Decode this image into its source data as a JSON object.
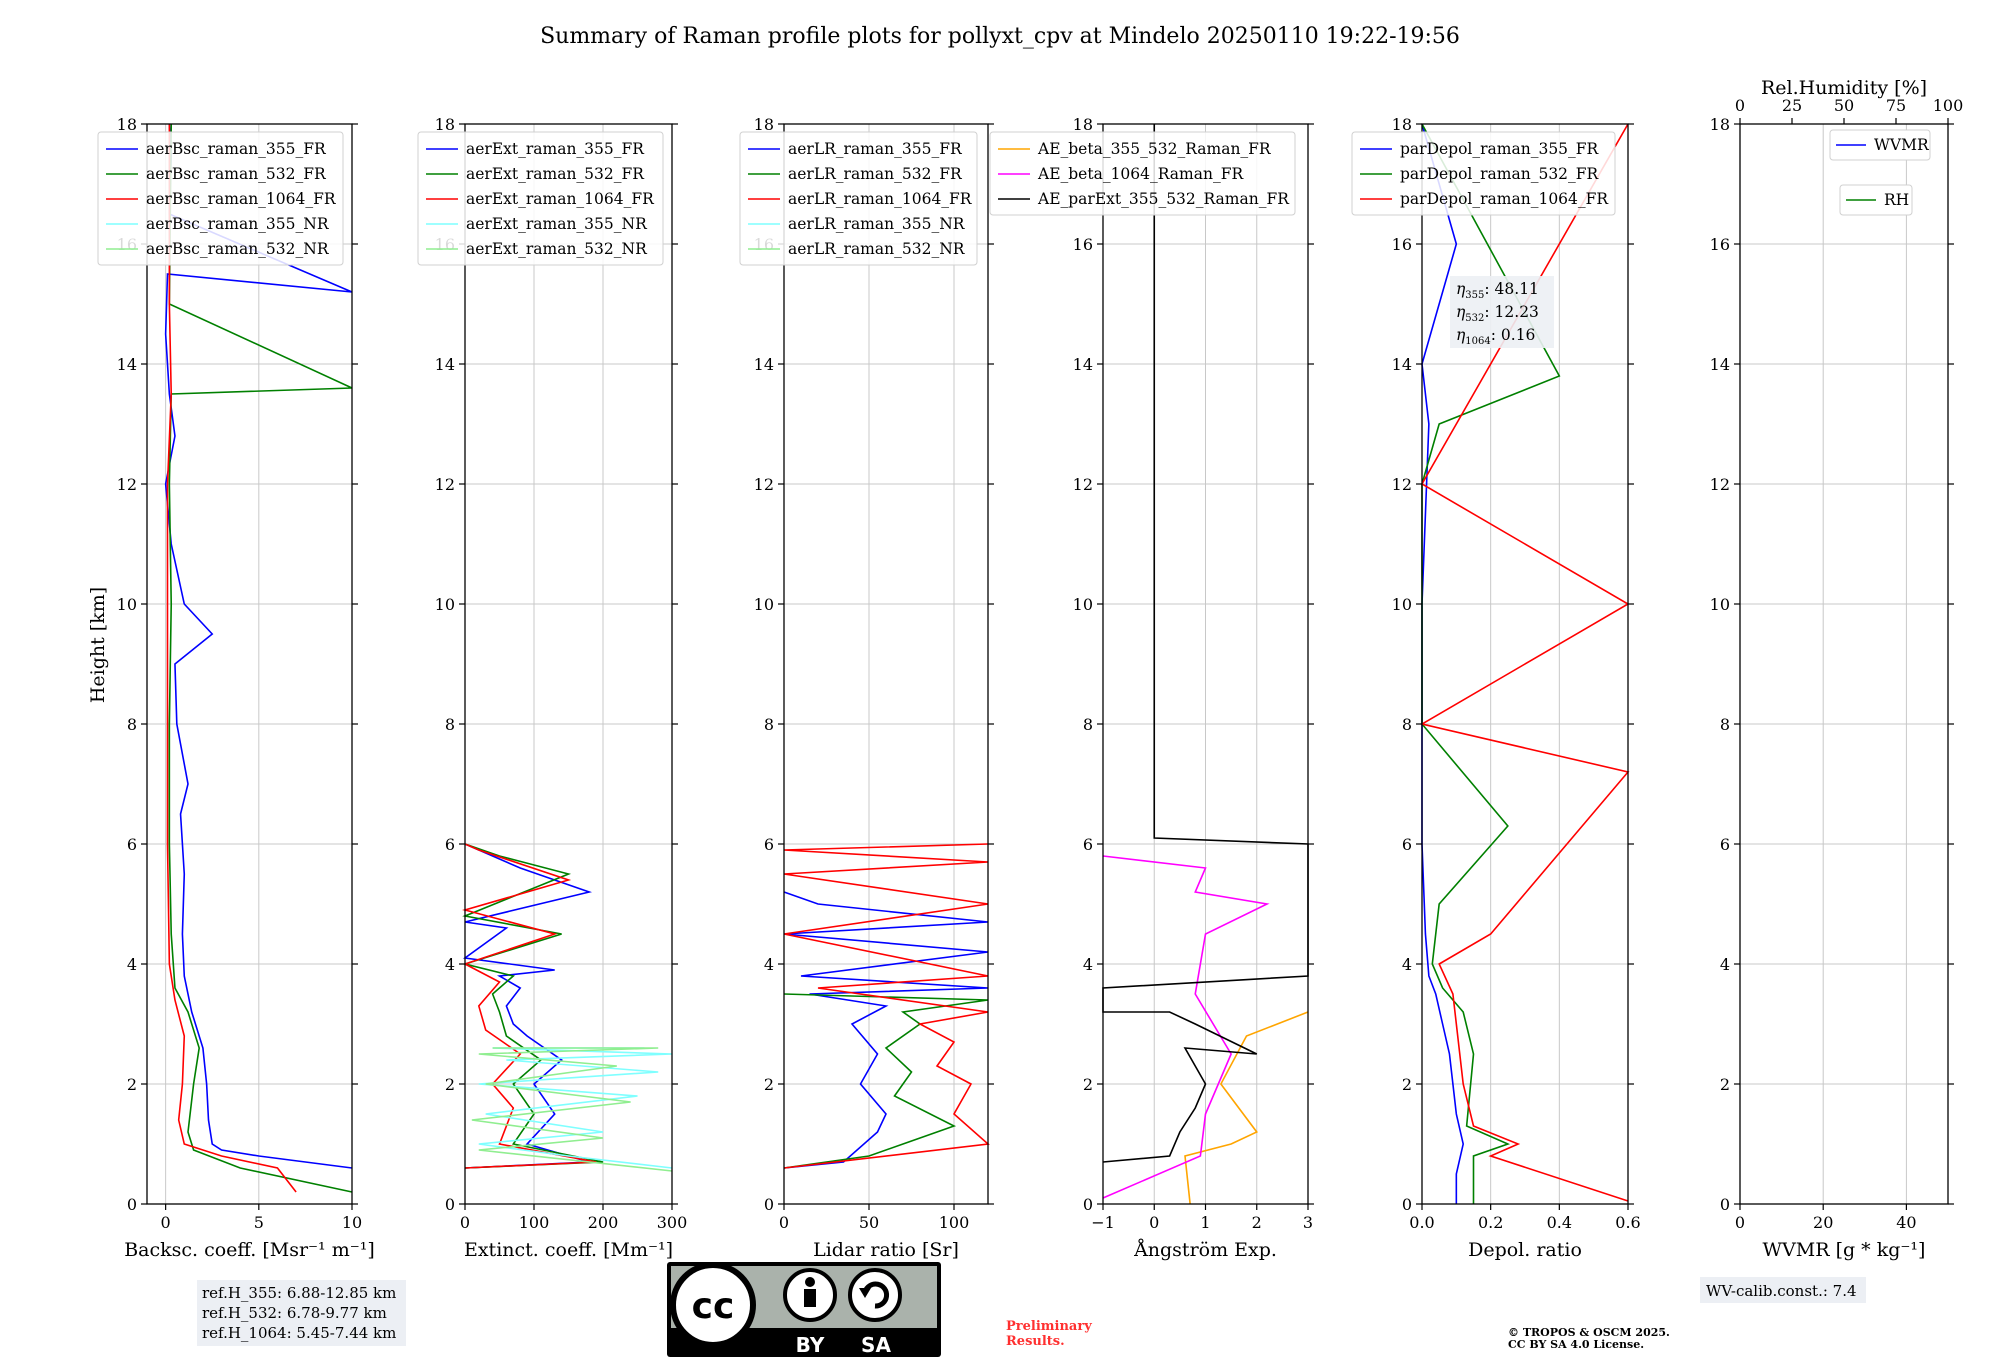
{
  "title": "Summary of Raman profile plots for pollyxt_cpv at Mindelo 20250110 19:22-19:56",
  "y_axis_label": "Height [km]",
  "colors": {
    "blue": "#0000ff",
    "green": "#008000",
    "red": "#ff0000",
    "cyan": "#7fffff",
    "lightgreen": "#90ee90",
    "orange": "#ffa500",
    "magenta": "#ff00ff",
    "black": "#000000",
    "grid": "#c8c8c8"
  },
  "chart_data": [
    {
      "id": "backscatter",
      "type": "line",
      "xlabel": "Backsc. coeff. [Msr⁻¹ m⁻¹]",
      "xlim": [
        -1,
        10
      ],
      "ylim": [
        0,
        18
      ],
      "xticks": [
        0,
        5,
        10
      ],
      "yticks": [
        0,
        2,
        4,
        6,
        8,
        10,
        12,
        14,
        16,
        18
      ],
      "legend": [
        "aerBsc_raman_355_FR",
        "aerBsc_raman_532_FR",
        "aerBsc_raman_1064_FR",
        "aerBsc_raman_355_NR",
        "aerBsc_raman_532_NR"
      ],
      "series": [
        {
          "name": "aerBsc_raman_355_FR",
          "color": "blue",
          "x": [
            10,
            5,
            3,
            2.5,
            2.3,
            2.2,
            2.0,
            1.4,
            1.0,
            0.9,
            1.0,
            0.8,
            1.2,
            0.6,
            0.5,
            2.5,
            1.0,
            0.3,
            0.0,
            0.5,
            0.2,
            0.0,
            0.1,
            10,
            0.2,
            0.3,
            0.2
          ],
          "y": [
            0.6,
            0.8,
            0.9,
            1.0,
            1.4,
            2.0,
            2.6,
            3.2,
            3.8,
            4.5,
            5.5,
            6.5,
            7.0,
            8.0,
            9.0,
            9.5,
            10.0,
            11.0,
            12.0,
            12.8,
            13.5,
            14.5,
            15.5,
            15.2,
            16.5,
            17.5,
            18
          ]
        },
        {
          "name": "aerBsc_raman_532_FR",
          "color": "green",
          "x": [
            10,
            4,
            1.5,
            1.2,
            1.5,
            1.8,
            1.2,
            0.5,
            0.3,
            0.2,
            0.2,
            0.3,
            0.2,
            0.3,
            10,
            0.2,
            0.3
          ],
          "y": [
            0.2,
            0.6,
            0.9,
            1.2,
            2.0,
            2.6,
            3.2,
            3.6,
            4.5,
            6.0,
            8.0,
            10.0,
            12.0,
            13.5,
            13.6,
            15.0,
            18
          ]
        },
        {
          "name": "aerBsc_raman_1064_FR",
          "color": "red",
          "x": [
            7,
            6,
            3,
            1,
            0.7,
            0.9,
            1.0,
            0.5,
            0.2,
            0.1,
            0.1,
            0.1,
            0.1,
            0.3,
            0.2,
            0.2
          ],
          "y": [
            0.2,
            0.6,
            0.8,
            1.0,
            1.4,
            2.0,
            2.8,
            3.4,
            4.0,
            6.0,
            8.0,
            10.0,
            12.0,
            13.5,
            15.0,
            18
          ]
        }
      ]
    },
    {
      "id": "extinction",
      "type": "line",
      "xlabel": "Extinct. coeff. [Mm⁻¹]",
      "xlim": [
        0,
        300
      ],
      "ylim": [
        0,
        18
      ],
      "xticks": [
        0,
        100,
        200,
        300
      ],
      "yticks": [
        0,
        2,
        4,
        6,
        8,
        10,
        12,
        14,
        16,
        18
      ],
      "legend": [
        "aerExt_raman_355_FR",
        "aerExt_raman_532_FR",
        "aerExt_raman_1064_FR",
        "aerExt_raman_355_NR",
        "aerExt_raman_532_NR"
      ],
      "series": [
        {
          "name": "aerExt_raman_355_FR",
          "color": "blue",
          "x": [
            0,
            180,
            90,
            130,
            100,
            140,
            90,
            70,
            60,
            80,
            50,
            130,
            0,
            60,
            0,
            180,
            80,
            0
          ],
          "y": [
            0.6,
            0.7,
            1.0,
            1.5,
            2.0,
            2.4,
            2.8,
            3.0,
            3.3,
            3.6,
            3.8,
            3.9,
            4.1,
            4.6,
            4.7,
            5.2,
            5.6,
            6.0
          ]
        },
        {
          "name": "aerExt_raman_532_FR",
          "color": "green",
          "x": [
            0,
            200,
            70,
            100,
            70,
            110,
            60,
            50,
            40,
            70,
            0,
            140,
            0,
            150,
            50,
            0
          ],
          "y": [
            0.6,
            0.7,
            1.0,
            1.5,
            2.0,
            2.4,
            2.8,
            3.2,
            3.5,
            3.8,
            4.0,
            4.5,
            4.8,
            5.5,
            5.8,
            6.0
          ]
        },
        {
          "name": "aerExt_raman_1064_FR",
          "color": "red",
          "x": [
            0,
            190,
            50,
            70,
            40,
            80,
            30,
            20,
            50,
            0,
            130,
            0,
            150,
            20,
            0
          ],
          "y": [
            0.6,
            0.7,
            1.0,
            1.6,
            2.0,
            2.5,
            2.9,
            3.3,
            3.7,
            4.0,
            4.5,
            4.9,
            5.4,
            5.9,
            6.0
          ]
        },
        {
          "name": "aerExt_raman_355_NR",
          "color": "cyan",
          "x": [
            300,
            150,
            20,
            200,
            30,
            250,
            20,
            280,
            60,
            300,
            40,
            260
          ],
          "y": [
            0.6,
            0.8,
            1.0,
            1.2,
            1.5,
            1.8,
            2.0,
            2.2,
            2.4,
            2.5,
            2.6,
            2.6
          ]
        },
        {
          "name": "aerExt_raman_532_NR",
          "color": "lightgreen",
          "x": [
            300,
            20,
            200,
            10,
            240,
            30,
            220,
            20,
            280,
            40
          ],
          "y": [
            0.55,
            0.9,
            1.1,
            1.4,
            1.7,
            2.0,
            2.3,
            2.5,
            2.6,
            2.6
          ]
        }
      ]
    },
    {
      "id": "lidar_ratio",
      "type": "line",
      "xlabel": "Lidar ratio [Sr]",
      "xlim": [
        0,
        120
      ],
      "ylim": [
        0,
        18
      ],
      "xticks": [
        0,
        50,
        100
      ],
      "yticks": [
        0,
        2,
        4,
        6,
        8,
        10,
        12,
        14,
        16,
        18
      ],
      "legend": [
        "aerLR_raman_355_FR",
        "aerLR_raman_532_FR",
        "aerLR_raman_1064_FR",
        "aerLR_raman_355_NR",
        "aerLR_raman_532_NR"
      ],
      "series": [
        {
          "name": "aerLR_raman_355_FR",
          "color": "blue",
          "x": [
            0,
            35,
            55,
            60,
            45,
            55,
            40,
            60,
            15,
            120,
            10,
            120,
            0,
            120,
            20,
            0
          ],
          "y": [
            0.6,
            0.7,
            1.2,
            1.5,
            2.0,
            2.5,
            3.0,
            3.3,
            3.5,
            3.6,
            3.8,
            4.2,
            4.5,
            4.7,
            5.0,
            5.2
          ]
        },
        {
          "name": "aerLR_raman_532_FR",
          "color": "green",
          "x": [
            0,
            50,
            100,
            65,
            75,
            60,
            80,
            70,
            120,
            0
          ],
          "y": [
            0.6,
            0.8,
            1.3,
            1.8,
            2.2,
            2.6,
            3.0,
            3.2,
            3.4,
            3.5
          ]
        },
        {
          "name": "aerLR_raman_1064_FR",
          "color": "red",
          "x": [
            0,
            120,
            100,
            110,
            90,
            100,
            80,
            120,
            20,
            120,
            0,
            120,
            0,
            120,
            0,
            120
          ],
          "y": [
            0.6,
            1.0,
            1.5,
            2.0,
            2.3,
            2.7,
            3.0,
            3.2,
            3.6,
            3.8,
            4.5,
            5.0,
            5.5,
            5.7,
            5.9,
            6.0
          ]
        }
      ]
    },
    {
      "id": "angstrom",
      "type": "line",
      "xlabel": "Ångström Exp.",
      "xlim": [
        -1,
        3
      ],
      "ylim": [
        0,
        18
      ],
      "xticks": [
        -1,
        0,
        1,
        2,
        3
      ],
      "yticks": [
        0,
        2,
        4,
        6,
        8,
        10,
        12,
        14,
        16,
        18
      ],
      "legend": [
        "AE_beta_355_532_Raman_FR",
        "AE_beta_1064_Raman_FR",
        "AE_parExt_355_532_Raman_FR"
      ],
      "series": [
        {
          "name": "AE_beta_355_532_Raman_FR",
          "color": "orange",
          "x": [
            0.7,
            0.6,
            1.5,
            2.0,
            1.3,
            1.8,
            3.0
          ],
          "y": [
            0.0,
            0.8,
            1.0,
            1.2,
            2.0,
            2.8,
            3.2
          ]
        },
        {
          "name": "AE_beta_1064_Raman_FR",
          "color": "magenta",
          "x": [
            -1,
            0.9,
            1.0,
            1.5,
            0.8,
            1.0,
            2.2,
            0.8,
            1.0,
            -1
          ],
          "y": [
            0.1,
            0.8,
            1.5,
            2.5,
            3.5,
            4.5,
            5.0,
            5.2,
            5.6,
            5.8
          ]
        },
        {
          "name": "AE_parExt_355_532_Raman_FR",
          "color": "black",
          "x": [
            -1,
            0.3,
            0.5,
            0.8,
            1.0,
            0.6,
            2.0,
            0.8,
            0.3,
            -1,
            -1,
            3,
            3,
            0,
            0
          ],
          "y": [
            0.7,
            0.8,
            1.2,
            1.6,
            2.0,
            2.6,
            2.5,
            3.0,
            3.2,
            3.2,
            3.6,
            3.8,
            6.0,
            6.1,
            18
          ]
        }
      ]
    },
    {
      "id": "depol",
      "type": "line",
      "xlabel": "Depol. ratio",
      "xlim": [
        0,
        0.6
      ],
      "ylim": [
        0,
        18
      ],
      "xticks": [
        0.0,
        0.2,
        0.4,
        0.6
      ],
      "yticks": [
        0,
        2,
        4,
        6,
        8,
        10,
        12,
        14,
        16,
        18
      ],
      "legend": [
        "parDepol_raman_355_FR",
        "parDepol_raman_532_FR",
        "parDepol_raman_1064_FR"
      ],
      "series": [
        {
          "name": "parDepol_raman_355_FR",
          "color": "blue",
          "x": [
            0.1,
            0.1,
            0.12,
            0.1,
            0.08,
            0.06,
            0.04,
            0.02,
            0.01,
            0.0,
            0.0,
            0.02,
            0.0,
            0.1,
            0.0
          ],
          "y": [
            0.0,
            0.5,
            1.0,
            1.5,
            2.5,
            3.0,
            3.5,
            3.8,
            4.5,
            6.0,
            10.0,
            13.0,
            14.0,
            16.0,
            18
          ]
        },
        {
          "name": "parDepol_raman_532_FR",
          "color": "green",
          "x": [
            0.15,
            0.15,
            0.25,
            0.13,
            0.15,
            0.12,
            0.06,
            0.03,
            0.05,
            0.25,
            0.0,
            0.0,
            0.05,
            0.4,
            0.0
          ],
          "y": [
            0.0,
            0.8,
            1.0,
            1.3,
            2.5,
            3.2,
            3.6,
            4.0,
            5.0,
            6.3,
            8.0,
            12.0,
            13.0,
            13.8,
            18
          ]
        },
        {
          "name": "parDepol_raman_1064_FR",
          "color": "red",
          "x": [
            0.6,
            0.2,
            0.28,
            0.15,
            0.12,
            0.1,
            0.09,
            0.05,
            0.2,
            0.6,
            0.0,
            0.6,
            0.0,
            0.6
          ],
          "y": [
            0.05,
            0.8,
            1.0,
            1.3,
            2.0,
            3.0,
            3.5,
            4.0,
            4.5,
            7.2,
            8.0,
            10.0,
            12.0,
            18
          ]
        }
      ],
      "annotation": [
        {
          "label": "η",
          "sub": "355",
          "value": ": 48.11"
        },
        {
          "label": "η",
          "sub": "532",
          "value": ": 12.23"
        },
        {
          "label": "η",
          "sub": "1064",
          "value": ": 0.16"
        }
      ]
    },
    {
      "id": "wvmr",
      "type": "line",
      "xlabel": "WVMR [g * kg⁻¹]",
      "xlim": [
        0,
        50
      ],
      "ylim": [
        0,
        18
      ],
      "xticks": [
        0,
        20,
        40
      ],
      "yticks": [
        0,
        2,
        4,
        6,
        8,
        10,
        12,
        14,
        16,
        18
      ],
      "top_axis": {
        "label": "Rel.Humidity [%]",
        "ticks": [
          0,
          25,
          50,
          75,
          100
        ],
        "lim": [
          0,
          100
        ]
      },
      "legend": [
        "WVMR",
        "RH"
      ],
      "series": []
    }
  ],
  "boxes": {
    "ref_heights": [
      "ref.H_355: 6.88-12.85 km",
      "ref.H_532: 6.78-9.77 km",
      "ref.H_1064: 5.45-7.44 km"
    ],
    "wv_calib": "WV-calib.const.: 7.4"
  },
  "license_badge": {
    "cc": "cc",
    "by": "BY",
    "sa": "SA"
  },
  "preliminary": [
    "Preliminary",
    "Results."
  ],
  "copyright": [
    "© TROPOS & OSCM 2025.",
    "CC BY SA 4.0 License."
  ]
}
